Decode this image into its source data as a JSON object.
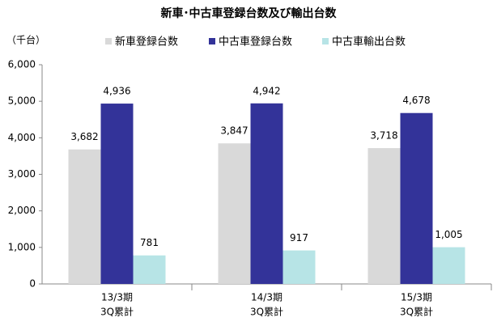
{
  "chart_data": {
    "type": "bar",
    "title": "新車･中古車登録台数及び輸出台数",
    "y_label": "（千台）",
    "categories": [
      [
        "13/3期",
        "3Q累計"
      ],
      [
        "14/3期",
        "3Q累計"
      ],
      [
        "15/3期",
        "3Q累計"
      ]
    ],
    "series": [
      {
        "name": "新車登録台数",
        "color": "#d9d9d9",
        "values": [
          3682,
          3847,
          3718
        ],
        "value_labels": [
          "3,682",
          "3,847",
          "3,718"
        ]
      },
      {
        "name": "中古車登録台数",
        "color": "#333399",
        "values": [
          4936,
          4942,
          4678
        ],
        "value_labels": [
          "4,936",
          "4,942",
          "4,678"
        ]
      },
      {
        "name": "中古車輸出台数",
        "color": "#b7e4e6",
        "values": [
          781,
          917,
          1005
        ],
        "value_labels": [
          "781",
          "917",
          "1,005"
        ]
      }
    ],
    "ylim": [
      0,
      6000
    ],
    "yticks": [
      0,
      {
        "value": 1000,
        "label": "1,000"
      },
      {
        "value": 2000,
        "label": "2,000"
      },
      {
        "value": 3000,
        "label": "3,000"
      },
      {
        "value": 4000,
        "label": "4,000"
      },
      {
        "value": 5000,
        "label": "5,000"
      },
      {
        "value": 6000,
        "label": "6,000"
      }
    ],
    "legend": "top",
    "grid": false
  }
}
